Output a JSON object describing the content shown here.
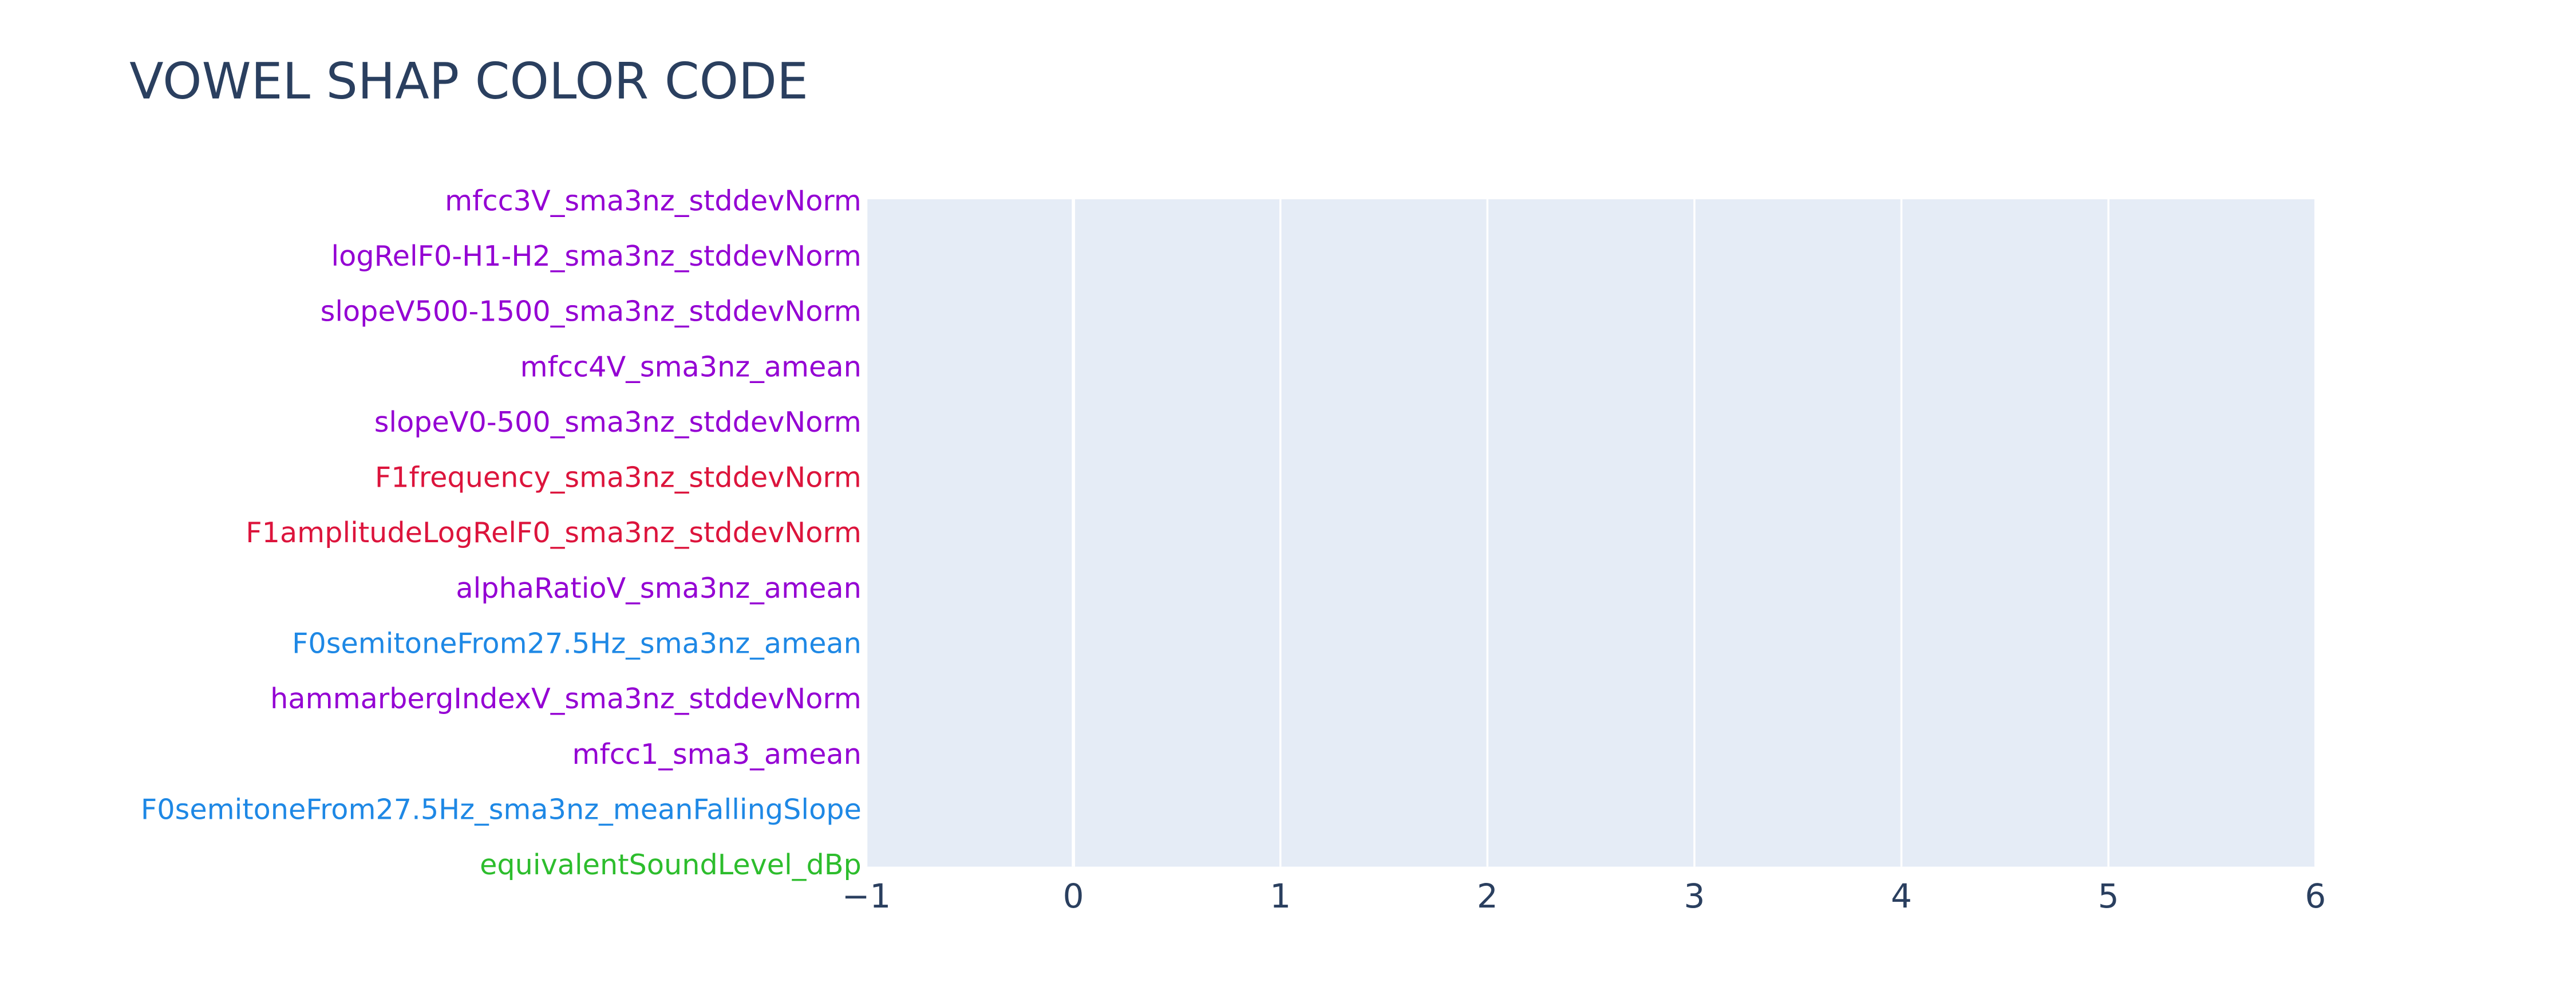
{
  "chart_data": {
    "type": "bar",
    "orientation": "h",
    "title": "VOWEL SHAP COLOR CODE",
    "categories": [
      "mfcc3V_sma3nz_stddevNorm",
      "logRelF0-H1-H2_sma3nz_stddevNorm",
      "slopeV500-1500_sma3nz_stddevNorm",
      "mfcc4V_sma3nz_amean",
      "slopeV0-500_sma3nz_stddevNorm",
      "F1frequency_sma3nz_stddevNorm",
      "F1amplitudeLogRelF0_sma3nz_stddevNorm",
      "alphaRatioV_sma3nz_amean",
      "F0semitoneFrom27.5Hz_sma3nz_amean",
      "hammarbergIndexV_sma3nz_stddevNorm",
      "mfcc1_sma3_amean",
      "F0semitoneFrom27.5Hz_sma3nz_meanFallingSlope",
      "equivalentSoundLevel_dBp"
    ],
    "category_colors": [
      "#9400d3",
      "#9400d3",
      "#9400d3",
      "#9400d3",
      "#9400d3",
      "#dc143c",
      "#dc143c",
      "#9400d3",
      "#1e88e5",
      "#9400d3",
      "#9400d3",
      "#1e88e5",
      "#2dbd2d"
    ],
    "xlim": [
      -1,
      6
    ],
    "xticks": [
      {
        "value": -1,
        "label": "−1"
      },
      0,
      1,
      2,
      3,
      4,
      5,
      6
    ],
    "grid": true
  }
}
